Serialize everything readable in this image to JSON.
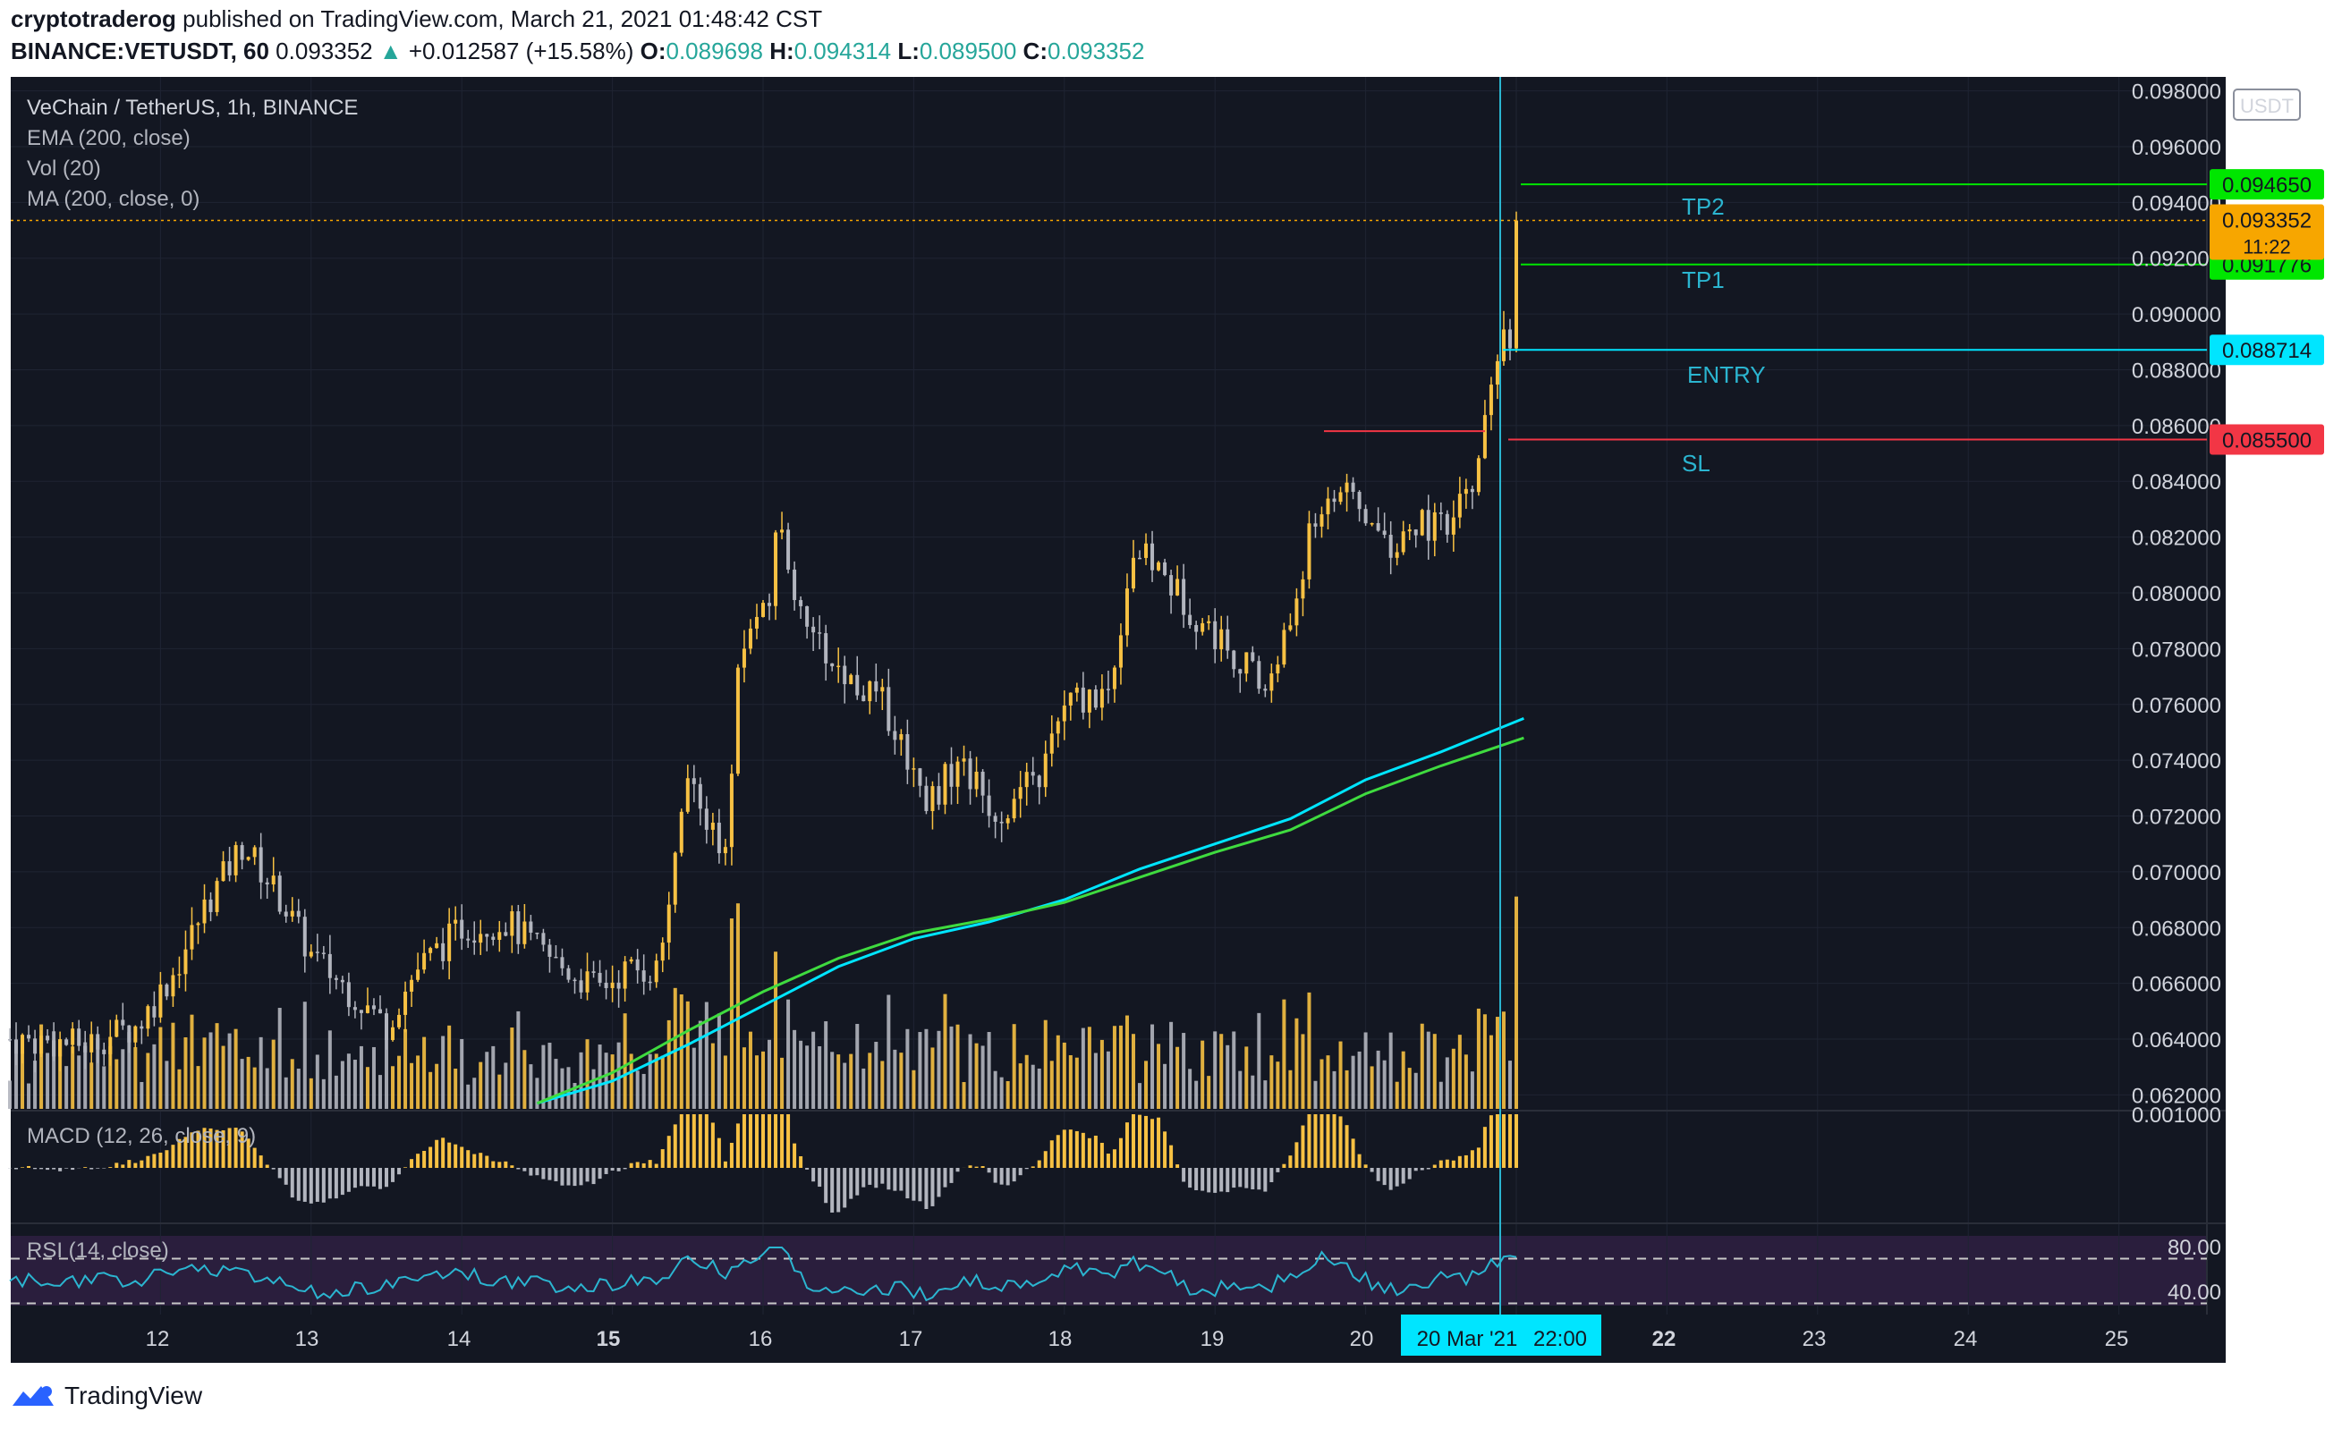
{
  "header": {
    "publisher": "cryptotraderog",
    "published_text": "published on TradingView.com, March 21, 2021 01:48:42 CST",
    "symbol": "BINANCE:VETUSDT, 60",
    "last": "0.093352",
    "change": "+0.012587 (+15.58%)",
    "o_label": "O:",
    "o": "0.089698",
    "h_label": "H:",
    "h": "0.094314",
    "l_label": "L:",
    "l": "0.089500",
    "c_label": "C:",
    "c": "0.093352"
  },
  "legend": {
    "title": "VeChain / TetherUS, 1h, BINANCE",
    "ema": "EMA (200, close)",
    "vol": "Vol (20)",
    "ma": "MA (200, close, 0)",
    "macd": "MACD (12, 26, close, 9)",
    "rsi": "RSI (14, close)"
  },
  "colors": {
    "background": "#131722",
    "up": "#f7c143",
    "down": "#b2b5be",
    "ema": "#00e5ff",
    "ma": "#3fdb3f",
    "tp": "#00e600",
    "entry": "#00e5ff",
    "sl": "#f23645",
    "rsi_band": "#2a1e3d",
    "crosshair": "#2bb5d0"
  },
  "footer": {
    "brand": "TradingView"
  },
  "chart_data": {
    "type": "candlestick",
    "title": "VeChain / TetherUS, 1h, BINANCE",
    "y_unit": "USDT",
    "ylim": [
      0.0615,
      0.0985
    ],
    "y_ticks": [
      "0.098000",
      "0.096000",
      "0.094000",
      "0.092000",
      "0.090000",
      "0.088000",
      "0.086000",
      "0.084000",
      "0.082000",
      "0.080000",
      "0.078000",
      "0.076000",
      "0.074000",
      "0.072000",
      "0.070000",
      "0.068000",
      "0.066000",
      "0.064000",
      "0.062000"
    ],
    "x_ticks": [
      "12",
      "13",
      "14",
      "15",
      "16",
      "17",
      "18",
      "19",
      "20",
      "20 Mar '21",
      "22:00",
      "22",
      "23",
      "24",
      "25"
    ],
    "grid": true,
    "levels": [
      {
        "name": "TP2",
        "value": 0.09465,
        "label": "0.094650"
      },
      {
        "name": "TP1",
        "value": 0.091776,
        "label": "0.091776"
      },
      {
        "name": "ENTRY",
        "value": 0.088714,
        "label": "0.088714"
      },
      {
        "name": "SL",
        "value": 0.0855,
        "label": "0.085500"
      }
    ],
    "last_price": {
      "label": "0.093352",
      "countdown": "11:22",
      "value": 0.093352
    },
    "resistance": {
      "value": 0.0858
    },
    "price_path": [
      {
        "day": 11.0,
        "price": 0.064
      },
      {
        "day": 11.5,
        "price": 0.0638
      },
      {
        "day": 11.85,
        "price": 0.0645
      },
      {
        "day": 12.1,
        "price": 0.0665
      },
      {
        "day": 12.3,
        "price": 0.0688
      },
      {
        "day": 12.55,
        "price": 0.071
      },
      {
        "day": 12.8,
        "price": 0.069
      },
      {
        "day": 13.0,
        "price": 0.067
      },
      {
        "day": 13.3,
        "price": 0.0655
      },
      {
        "day": 13.5,
        "price": 0.0645
      },
      {
        "day": 13.7,
        "price": 0.0665
      },
      {
        "day": 14.0,
        "price": 0.068
      },
      {
        "day": 14.3,
        "price": 0.0682
      },
      {
        "day": 14.6,
        "price": 0.0668
      },
      {
        "day": 14.9,
        "price": 0.0658
      },
      {
        "day": 15.1,
        "price": 0.0665
      },
      {
        "day": 15.3,
        "price": 0.0665
      },
      {
        "day": 15.5,
        "price": 0.073
      },
      {
        "day": 15.75,
        "price": 0.0705
      },
      {
        "day": 15.85,
        "price": 0.078
      },
      {
        "day": 16.05,
        "price": 0.08
      },
      {
        "day": 16.1,
        "price": 0.0825
      },
      {
        "day": 16.3,
        "price": 0.0785
      },
      {
        "day": 16.55,
        "price": 0.077
      },
      {
        "day": 16.8,
        "price": 0.076
      },
      {
        "day": 17.1,
        "price": 0.0725
      },
      {
        "day": 17.3,
        "price": 0.074
      },
      {
        "day": 17.55,
        "price": 0.072
      },
      {
        "day": 17.85,
        "price": 0.0735
      },
      {
        "day": 18.0,
        "price": 0.076
      },
      {
        "day": 18.3,
        "price": 0.0765
      },
      {
        "day": 18.45,
        "price": 0.0815
      },
      {
        "day": 18.6,
        "price": 0.081
      },
      {
        "day": 18.9,
        "price": 0.079
      },
      {
        "day": 19.1,
        "price": 0.078
      },
      {
        "day": 19.35,
        "price": 0.0765
      },
      {
        "day": 19.5,
        "price": 0.079
      },
      {
        "day": 19.65,
        "price": 0.0825
      },
      {
        "day": 19.8,
        "price": 0.0838
      },
      {
        "day": 19.95,
        "price": 0.083
      },
      {
        "day": 20.2,
        "price": 0.0815
      },
      {
        "day": 20.35,
        "price": 0.0825
      },
      {
        "day": 20.55,
        "price": 0.0822
      },
      {
        "day": 20.75,
        "price": 0.0845
      },
      {
        "day": 20.82,
        "price": 0.087
      },
      {
        "day": 20.9,
        "price": 0.0888
      },
      {
        "day": 21.0,
        "price": 0.0897
      },
      {
        "day": 21.04,
        "price": 0.0934
      }
    ],
    "ema_200": [
      {
        "day": 14.5,
        "price": 0.0617
      },
      {
        "day": 15.0,
        "price": 0.0625
      },
      {
        "day": 15.5,
        "price": 0.0638
      },
      {
        "day": 16.0,
        "price": 0.0652
      },
      {
        "day": 16.5,
        "price": 0.0666
      },
      {
        "day": 17.0,
        "price": 0.0676
      },
      {
        "day": 17.5,
        "price": 0.0682
      },
      {
        "day": 18.0,
        "price": 0.069
      },
      {
        "day": 18.5,
        "price": 0.0701
      },
      {
        "day": 19.0,
        "price": 0.071
      },
      {
        "day": 19.5,
        "price": 0.0719
      },
      {
        "day": 20.0,
        "price": 0.0733
      },
      {
        "day": 20.5,
        "price": 0.0743
      },
      {
        "day": 21.05,
        "price": 0.0755
      }
    ],
    "ma_200": [
      {
        "day": 14.5,
        "price": 0.0617
      },
      {
        "day": 15.0,
        "price": 0.0628
      },
      {
        "day": 15.5,
        "price": 0.0643
      },
      {
        "day": 16.0,
        "price": 0.0657
      },
      {
        "day": 16.5,
        "price": 0.0669
      },
      {
        "day": 17.0,
        "price": 0.0678
      },
      {
        "day": 17.5,
        "price": 0.0683
      },
      {
        "day": 18.0,
        "price": 0.0689
      },
      {
        "day": 18.5,
        "price": 0.0698
      },
      {
        "day": 19.0,
        "price": 0.0707
      },
      {
        "day": 19.5,
        "price": 0.0715
      },
      {
        "day": 20.0,
        "price": 0.0728
      },
      {
        "day": 20.5,
        "price": 0.0738
      },
      {
        "day": 21.05,
        "price": 0.0748
      }
    ],
    "macd": {
      "ylim": [
        -0.0012,
        0.0012
      ],
      "y_ticks": [
        "0.001000"
      ]
    },
    "rsi": {
      "ylim": [
        20,
        100
      ],
      "y_ticks": [
        "80.00",
        "40.00"
      ],
      "bands": [
        70,
        30
      ]
    }
  }
}
